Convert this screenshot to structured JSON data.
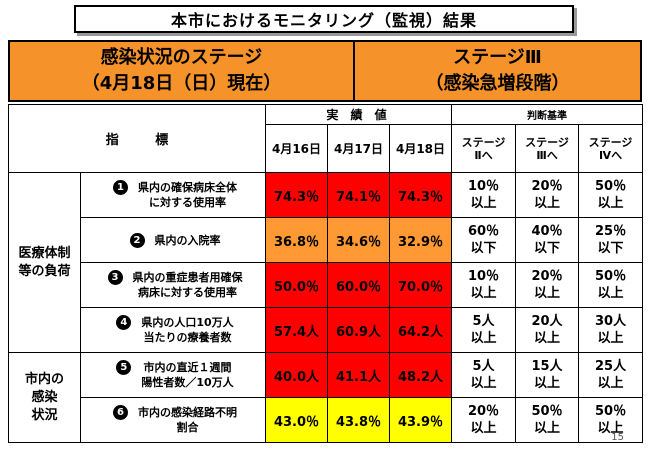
{
  "title": "本市におけるモニタリング（監視）結果",
  "banner": {
    "left_line1": "感染状況のステージ",
    "left_line2": "（4月18日（日）現在）",
    "right_line1": "ステージⅢ",
    "right_line2": "（感染急増段階）"
  },
  "header": {
    "indicator": "指 標",
    "actual": "実 績 値",
    "judge": "判断基準",
    "dates": [
      "4月16日",
      "4月17日",
      "4月18日"
    ],
    "stages": [
      {
        "l1": "ステージ",
        "l2": "Ⅱへ"
      },
      {
        "l1": "ステージ",
        "l2": "Ⅲへ"
      },
      {
        "l1": "ステージ",
        "l2": "Ⅳへ"
      }
    ]
  },
  "categories": {
    "medical": {
      "l1": "医療体制",
      "l2": "等の負荷"
    },
    "infection": {
      "l1": "市内の",
      "l2": "感染",
      "l3": "状況"
    }
  },
  "rows": [
    {
      "num": "1",
      "l1": "県内の確保病床全体",
      "l2": "に対する使用率",
      "values": [
        "74.3％",
        "74.1％",
        "74.3％"
      ],
      "thresholds": [
        {
          "a": "10％",
          "b": "以上"
        },
        {
          "a": "20％",
          "b": "以上"
        },
        {
          "a": "50％",
          "b": "以上"
        }
      ]
    },
    {
      "num": "2",
      "l1": "県内の入院率",
      "l2": "",
      "values": [
        "36.8％",
        "34.6％",
        "32.9％"
      ],
      "thresholds": [
        {
          "a": "60％",
          "b": "以下"
        },
        {
          "a": "40％",
          "b": "以下"
        },
        {
          "a": "25％",
          "b": "以下"
        }
      ]
    },
    {
      "num": "3",
      "l1": "県内の重症患者用確保",
      "l2": "病床に対する使用率",
      "values": [
        "50.0％",
        "60.0％",
        "70.0％"
      ],
      "thresholds": [
        {
          "a": "10％",
          "b": "以上"
        },
        {
          "a": "20％",
          "b": "以上"
        },
        {
          "a": "50％",
          "b": "以上"
        }
      ]
    },
    {
      "num": "4",
      "l1": "県内の人口10万人",
      "l2": "当たりの療養者数",
      "values": [
        "57.4人",
        "60.9人",
        "64.2人"
      ],
      "thresholds": [
        {
          "a": "5人",
          "b": "以上"
        },
        {
          "a": "20人",
          "b": "以上"
        },
        {
          "a": "30人",
          "b": "以上"
        }
      ]
    },
    {
      "num": "5",
      "l1": "市内の直近１週間",
      "l2": "陽性者数／10万人",
      "values": [
        "40.0人",
        "41.1人",
        "48.2人"
      ],
      "thresholds": [
        {
          "a": "5人",
          "b": "以上"
        },
        {
          "a": "15人",
          "b": "以上"
        },
        {
          "a": "25人",
          "b": "以上"
        }
      ]
    },
    {
      "num": "6",
      "l1": "市内の感染経路不明",
      "l2": "割合",
      "values": [
        "43.0％",
        "43.8％",
        "43.9％"
      ],
      "thresholds": [
        {
          "a": "20％",
          "b": "以上"
        },
        {
          "a": "50％",
          "b": "以上"
        },
        {
          "a": "50％",
          "b": "以上"
        }
      ]
    }
  ],
  "colors": {
    "red": "#ff0000",
    "orange": "#ff9933",
    "yellow": "#ffff00",
    "banner": "#f5922a"
  },
  "page_number": "15"
}
